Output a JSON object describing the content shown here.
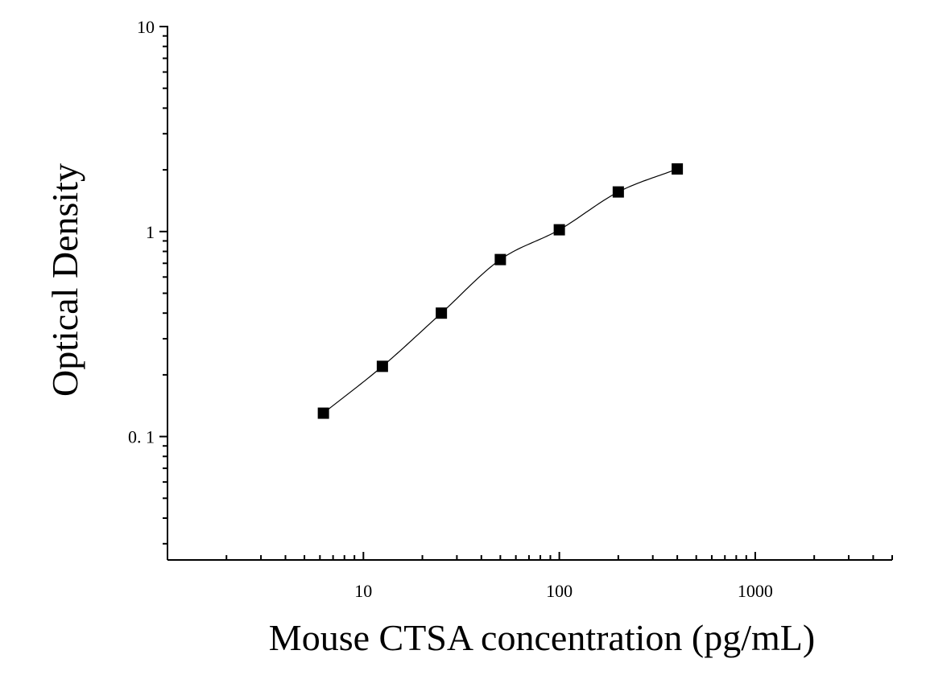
{
  "chart_data": {
    "type": "scatter",
    "title": "",
    "xlabel": "Mouse CTSA concentration (pg/mL)",
    "ylabel": "Optical Density",
    "x_scale": "log",
    "y_scale": "log",
    "xlim": [
      1,
      5000
    ],
    "ylim": [
      0.025,
      10
    ],
    "x_tick_labels": [
      {
        "value": 10,
        "label": "10"
      },
      {
        "value": 100,
        "label": "100"
      },
      {
        "value": 1000,
        "label": "1000"
      }
    ],
    "y_tick_labels": [
      {
        "value": 10,
        "label": "10"
      },
      {
        "value": 1,
        "label": "1"
      },
      {
        "value": 0.1,
        "label": "0. 1"
      }
    ],
    "grid": false,
    "legend": "none",
    "series": [
      {
        "marker": "square",
        "x": [
          6.25,
          12.5,
          25,
          50,
          100,
          200,
          400
        ],
        "y": [
          0.13,
          0.22,
          0.4,
          0.73,
          1.02,
          1.56,
          2.02
        ]
      }
    ],
    "fit_curve": true,
    "colors": {
      "marker": "#000000",
      "line": "#000000",
      "axis": "#000000"
    }
  }
}
